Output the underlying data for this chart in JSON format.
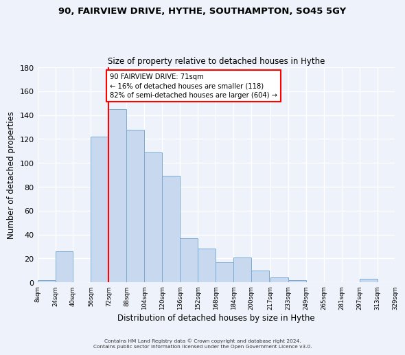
{
  "title": "90, FAIRVIEW DRIVE, HYTHE, SOUTHAMPTON, SO45 5GY",
  "subtitle": "Size of property relative to detached houses in Hythe",
  "xlabel": "Distribution of detached houses by size in Hythe",
  "ylabel": "Number of detached properties",
  "bin_labels": [
    "8sqm",
    "24sqm",
    "40sqm",
    "56sqm",
    "72sqm",
    "88sqm",
    "104sqm",
    "120sqm",
    "136sqm",
    "152sqm",
    "168sqm",
    "184sqm",
    "200sqm",
    "217sqm",
    "233sqm",
    "249sqm",
    "265sqm",
    "281sqm",
    "297sqm",
    "313sqm",
    "329sqm"
  ],
  "bar_values": [
    2,
    26,
    0,
    122,
    145,
    128,
    109,
    89,
    37,
    28,
    17,
    21,
    10,
    4,
    2,
    0,
    0,
    0,
    3,
    0
  ],
  "bin_left_edges": [
    8,
    24,
    40,
    56,
    72,
    88,
    104,
    120,
    136,
    152,
    168,
    184,
    200,
    217,
    233,
    249,
    265,
    281,
    297,
    313
  ],
  "bin_width": 16,
  "bar_color": "#c8d8ef",
  "bar_edge_color": "#7aaad4",
  "vline_x": 72,
  "vline_color": "red",
  "annotation_text": "90 FAIRVIEW DRIVE: 71sqm\n← 16% of detached houses are smaller (118)\n82% of semi-detached houses are larger (604) →",
  "annotation_box_color": "white",
  "annotation_box_edge": "red",
  "ylim": [
    0,
    180
  ],
  "yticks": [
    0,
    20,
    40,
    60,
    80,
    100,
    120,
    140,
    160,
    180
  ],
  "footer_line1": "Contains HM Land Registry data © Crown copyright and database right 2024.",
  "footer_line2": "Contains public sector information licensed under the Open Government Licence v3.0.",
  "background_color": "#eef2fa",
  "grid_color": "white"
}
